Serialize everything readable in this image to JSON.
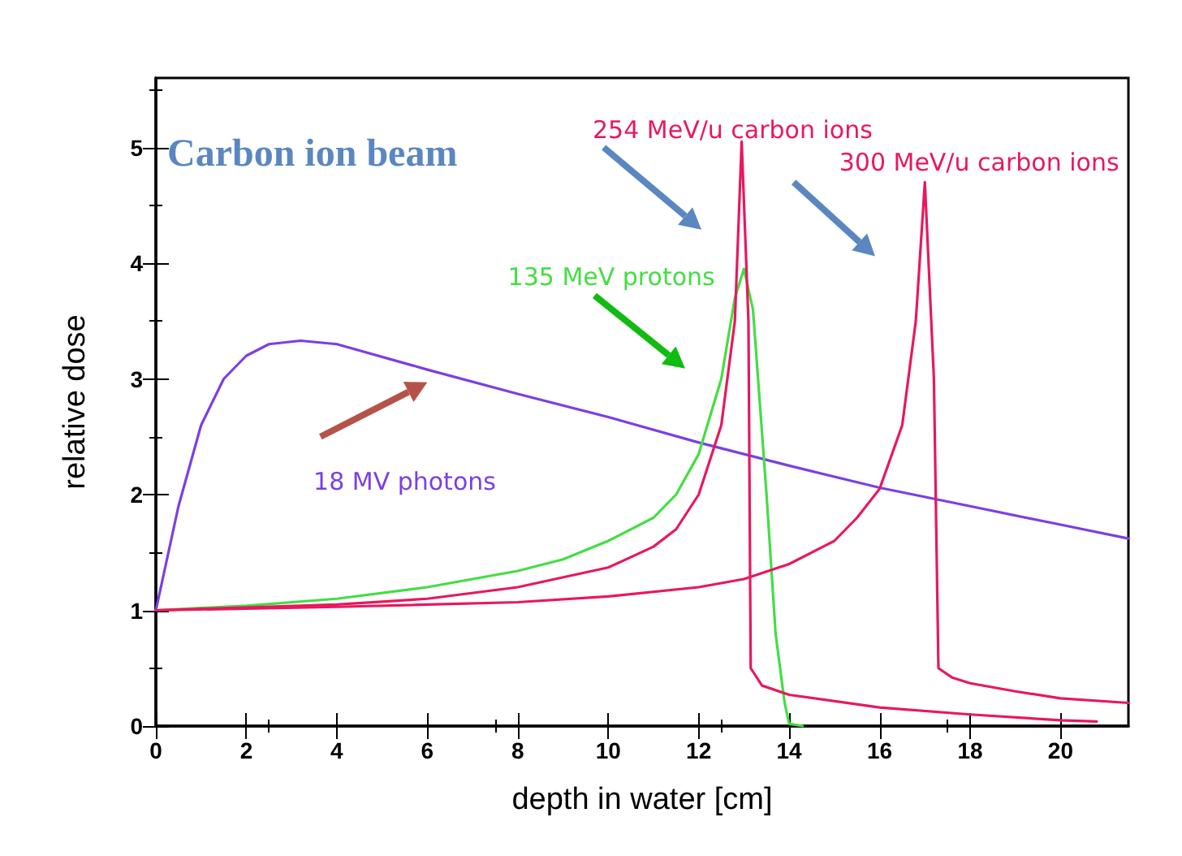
{
  "chart_data": {
    "type": "line",
    "title": "Carbon ion beam",
    "xlabel": "depth in water [cm]",
    "ylabel": "relative dose",
    "xlim": [
      0,
      21.5
    ],
    "ylim": [
      0,
      5.6
    ],
    "xticks": [
      0,
      2,
      4,
      6,
      8,
      10,
      12,
      14,
      16,
      18,
      20
    ],
    "yticks": [
      0,
      1,
      2,
      3,
      4,
      5
    ],
    "grid": false,
    "legend": false,
    "marker": "none",
    "line_style": "solid",
    "series": [
      {
        "name": "18 MV photons",
        "color": "#7b3fe4",
        "x": [
          0,
          0.5,
          1,
          1.5,
          2,
          2.5,
          3.2,
          4,
          6,
          8,
          10,
          12,
          14,
          16,
          18,
          20,
          21.5
        ],
        "values": [
          1,
          1.9,
          2.6,
          3.0,
          3.2,
          3.3,
          3.33,
          3.3,
          3.08,
          2.87,
          2.67,
          2.45,
          2.25,
          2.06,
          1.9,
          1.74,
          1.62
        ]
      },
      {
        "name": "135 MeV protons",
        "color": "#44dd44",
        "x": [
          0,
          2,
          4,
          6,
          8,
          9,
          10,
          11,
          11.5,
          12,
          12.5,
          12.8,
          13,
          13.2,
          13.5,
          13.7,
          13.9,
          14,
          14.3
        ],
        "values": [
          1,
          1.04,
          1.1,
          1.2,
          1.34,
          1.44,
          1.6,
          1.8,
          2.0,
          2.35,
          3.0,
          3.7,
          3.95,
          3.6,
          2.0,
          0.8,
          0.2,
          0.02,
          0
        ]
      },
      {
        "name": "254 MeV/u carbon ions",
        "color": "#e8185c",
        "x": [
          0,
          4,
          6,
          8,
          10,
          11,
          11.5,
          12,
          12.5,
          12.8,
          12.95,
          13.1,
          13.15,
          13.4,
          14,
          16,
          18,
          20,
          20.8
        ],
        "values": [
          1,
          1.05,
          1.1,
          1.2,
          1.37,
          1.55,
          1.7,
          2.0,
          2.6,
          3.5,
          5.05,
          3.5,
          0.5,
          0.35,
          0.27,
          0.16,
          0.1,
          0.05,
          0.04
        ]
      },
      {
        "name": "300 MeV/u carbon ions",
        "color": "#e8185c",
        "x": [
          0,
          4,
          8,
          10,
          12,
          13,
          14,
          15,
          15.5,
          16,
          16.5,
          16.8,
          17,
          17.2,
          17.3,
          17.6,
          18,
          19,
          20,
          21.5
        ],
        "values": [
          1,
          1.03,
          1.07,
          1.12,
          1.2,
          1.27,
          1.4,
          1.6,
          1.8,
          2.05,
          2.6,
          3.5,
          4.7,
          3.0,
          0.5,
          0.42,
          0.37,
          0.3,
          0.24,
          0.2
        ]
      }
    ]
  }
}
